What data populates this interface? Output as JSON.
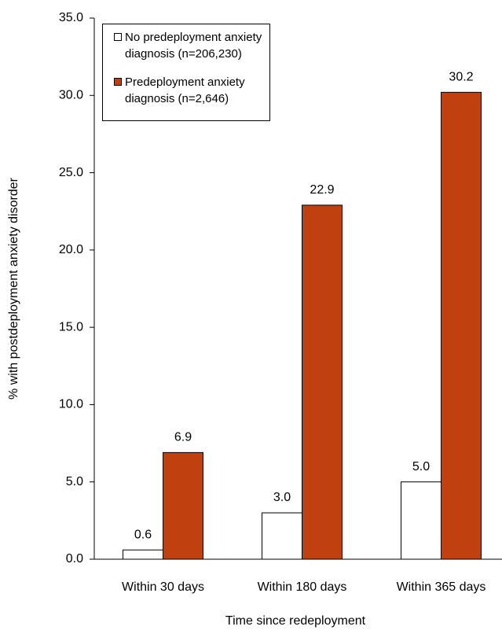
{
  "chart_data": {
    "type": "bar",
    "x_label": "Time since redeployment",
    "y_label": "% with postdeployment anxiety disorder",
    "categories": [
      "Within 30 days",
      "Within 180 days",
      "Within 365 days"
    ],
    "series": [
      {
        "name": "No predeployment anxiety diagnosis (n=206,230)",
        "color": "#ffffff",
        "values": [
          0.6,
          3.0,
          5.0
        ],
        "value_labels": [
          "0.6",
          "3.0",
          "5.0"
        ]
      },
      {
        "name": "Predeployment anxiety diagnosis (n=2,646)",
        "color": "#c0400f",
        "values": [
          6.9,
          22.9,
          30.2
        ],
        "value_labels": [
          "6.9",
          "22.9",
          "30.2"
        ]
      }
    ],
    "ylim": [
      0,
      35
    ],
    "yticks": [
      {
        "value": 0,
        "label": "0.0"
      },
      {
        "value": 5,
        "label": "5.0"
      },
      {
        "value": 10,
        "label": "10.0"
      },
      {
        "value": 15,
        "label": "15.0"
      },
      {
        "value": 20,
        "label": "20.0"
      },
      {
        "value": 25,
        "label": "25.0"
      },
      {
        "value": 30,
        "label": "30.0"
      },
      {
        "value": 35,
        "label": "35.0"
      }
    ],
    "legend": "top-left"
  }
}
